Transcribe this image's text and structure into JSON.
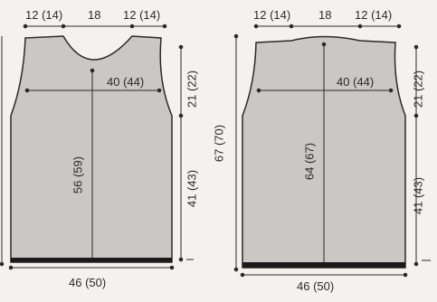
{
  "colors": {
    "panel": "#c9c8c4",
    "line": "#2a2a2a",
    "rib": "#1a1a1a",
    "paper": "#f3f2ee"
  },
  "front": {
    "shoulder_left": "12 (14)",
    "neck": "18",
    "shoulder_right": "12 (14)",
    "width_chest": "40 (44)",
    "center_length": "56 (59)",
    "armhole": "21 (22)",
    "side": "41 (43)",
    "bottom": "46 (50)"
  },
  "back": {
    "shoulder_left": "12 (14)",
    "neck": "18",
    "shoulder_right": "12 (14)",
    "width_chest": "40 (44)",
    "total_length": "67 (70)",
    "center_length": "64 (67)",
    "armhole": "21 (22)",
    "side": "41 (43)",
    "bottom": "46 (50)"
  }
}
